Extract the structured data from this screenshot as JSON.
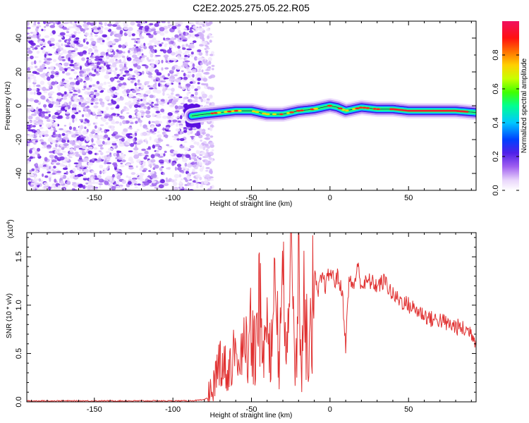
{
  "figure": {
    "title": "C2E2.2025.275.05.22.R05"
  },
  "chart_data": [
    {
      "type": "heatmap",
      "title": "C2E2.2025.275.05.22.R05",
      "xlabel": "Height of straight line (km)",
      "ylabel": "Frequency (Hz)",
      "xlim": [
        -193,
        93
      ],
      "ylim": [
        -50,
        50
      ],
      "x_ticks": [
        -150,
        -100,
        -50,
        0,
        50
      ],
      "x_tick_labels": [
        "-150",
        "-100",
        "-50",
        "0",
        "50"
      ],
      "y_ticks": [
        -40,
        -20,
        0,
        20,
        40
      ],
      "y_tick_labels": [
        "-40",
        "-20",
        "0",
        "20",
        "40"
      ],
      "noise_region_x": [
        -193,
        -78
      ],
      "signal_ridge": {
        "x": [
          -88,
          -80,
          -70,
          -60,
          -50,
          -40,
          -30,
          -20,
          -10,
          0,
          5,
          10,
          20,
          30,
          40,
          50,
          60,
          70,
          80,
          93
        ],
        "frequency": [
          -6,
          -5,
          -4,
          -3,
          -3,
          -5,
          -5,
          -3,
          -2,
          0,
          -1,
          -3,
          -1,
          -2,
          -2,
          -3,
          -3,
          -3,
          -3,
          -4
        ]
      },
      "colorbar": {
        "label": "Normalized spectral amplitude",
        "range": [
          0.0,
          1.0
        ],
        "ticks": [
          0.0,
          0.2,
          0.4,
          0.6,
          0.8
        ],
        "tick_labels": [
          "0.0",
          "0.2",
          "0.4",
          "0.6",
          "0.8"
        ]
      }
    },
    {
      "type": "line",
      "xlabel": "Height of straight line (km)",
      "ylabel": "SNR (10 * v/v)",
      "y_multiplier": "(x10",
      "y_multiplier_exp": "4",
      "y_multiplier_close": ")",
      "xlim": [
        -193,
        93
      ],
      "ylim": [
        0,
        1.75
      ],
      "x_ticks": [
        -150,
        -100,
        -50,
        0,
        50
      ],
      "x_tick_labels": [
        "-150",
        "-100",
        "-50",
        "0",
        "50"
      ],
      "y_ticks": [
        0,
        0.5,
        1.0,
        1.5
      ],
      "y_tick_labels": [
        "0.0",
        "0.5",
        "1.0",
        "1.5"
      ],
      "series": [
        {
          "x": [
            -193,
            -180,
            -160,
            -140,
            -120,
            -100,
            -90,
            -80,
            -77,
            -75,
            -70,
            -65,
            -60,
            -58,
            -55,
            -52,
            -50,
            -48,
            -45,
            -42,
            -40,
            -38,
            -35,
            -32,
            -30,
            -28,
            -25,
            -22,
            -20,
            -18,
            -16,
            -14,
            -12,
            -10,
            -8,
            -5,
            -3,
            0,
            3,
            5,
            8,
            10,
            12,
            15,
            18,
            20,
            25,
            30,
            35,
            40,
            45,
            50,
            55,
            60,
            65,
            70,
            75,
            80,
            85,
            90,
            93
          ],
          "y": [
            0.01,
            0.01,
            0.01,
            0.01,
            0.01,
            0.01,
            0.01,
            0.02,
            0.05,
            0.12,
            0.45,
            0.3,
            0.6,
            0.4,
            0.8,
            0.5,
            1.05,
            0.6,
            1.2,
            0.5,
            1.1,
            0.45,
            1.25,
            0.55,
            1.4,
            0.6,
            1.5,
            0.55,
            1.75,
            0.4,
            1.45,
            0.3,
            1.2,
            1.35,
            1.1,
            1.3,
            1.2,
            1.35,
            1.25,
            1.3,
            1.1,
            0.58,
            1.25,
            1.2,
            1.4,
            1.2,
            1.25,
            1.2,
            1.25,
            1.1,
            1.05,
            1.0,
            0.95,
            0.9,
            0.85,
            0.85,
            0.8,
            0.78,
            0.75,
            0.72,
            0.62
          ]
        }
      ]
    }
  ]
}
